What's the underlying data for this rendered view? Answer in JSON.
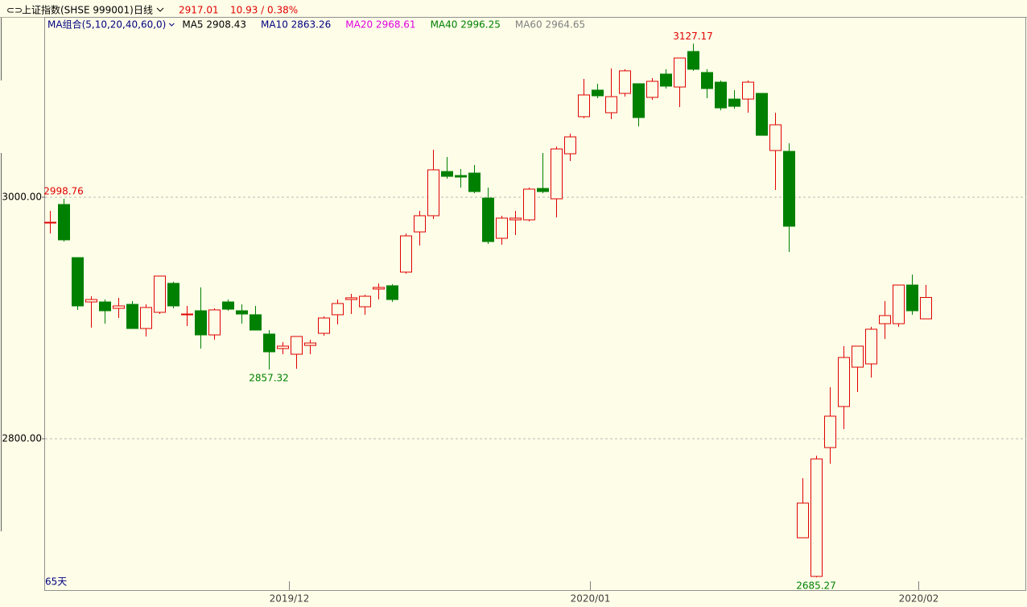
{
  "chart_data": {
    "type": "candlestick",
    "header": {
      "title": "上证指数(SHSE 999001)",
      "period": "日线",
      "last": "2917.01",
      "change": "10.93 / 0.38%"
    },
    "ma_legend": [
      {
        "text": "MA组合(5,10,20,40,60,0)",
        "color": "#000080"
      },
      {
        "text": "MA5 2908.43",
        "color": "#000000"
      },
      {
        "text": "MA10 2863.26",
        "color": "#000080"
      },
      {
        "text": "MA20 2968.61",
        "color": "#e000e0"
      },
      {
        "text": "MA40 2996.25",
        "color": "#008000"
      },
      {
        "text": "MA60 2964.65",
        "color": "#808080"
      }
    ],
    "period_count": "65天",
    "categories": [
      null,
      null,
      null,
      null,
      null,
      null,
      null,
      null,
      null,
      null,
      null,
      null,
      null,
      null,
      null,
      null,
      null,
      null,
      null,
      null,
      null,
      null,
      null,
      null,
      null,
      null,
      null,
      null,
      null,
      null,
      null,
      null,
      null,
      null,
      null,
      null,
      null,
      null,
      null,
      null,
      null,
      null,
      null,
      null,
      null,
      null,
      null,
      null,
      null,
      null,
      null,
      null,
      null,
      null,
      null,
      null,
      null,
      null,
      null,
      null,
      null,
      null,
      null,
      null,
      null
    ],
    "open": [
      2978.7,
      2994,
      2950,
      2913.3,
      2913.3,
      2908,
      2911.3,
      2891.3,
      2904.7,
      2928.7,
      2902.7,
      2906,
      2886,
      2913.3,
      2906,
      2902.7,
      2886.7,
      2874.7,
      2870,
      2877.3,
      2887.3,
      2902.7,
      2915.3,
      2909.3,
      2924,
      2926.7,
      2938,
      2971.3,
      2984.7,
      3021.3,
      3018,
      3020,
      2999.3,
      2966,
      2981.3,
      2981.3,
      3007.3,
      2998.7,
      3036,
      3066.7,
      3088.7,
      3070,
      3086,
      3094,
      3082.7,
      3102,
      3091.3,
      3120.7,
      3103.3,
      3095.3,
      3081.3,
      3081.3,
      3086,
      3038.7,
      3038,
      2718,
      2686,
      2792.7,
      2826.7,
      2859.3,
      2862,
      2895.3,
      2895.3,
      2927.3,
      2899.3
    ],
    "close": [
      2979.3,
      2964.7,
      2910,
      2915.3,
      2906,
      2910,
      2891.3,
      2908.7,
      2934.7,
      2910,
      2903.3,
      2886,
      2906.7,
      2907.3,
      2903.3,
      2890,
      2872,
      2876.7,
      2884.7,
      2879.3,
      2900,
      2912,
      2916.7,
      2918,
      2925.3,
      2915.3,
      2968,
      2984.7,
      3022.7,
      3017.3,
      3016.7,
      3004.7,
      2963.3,
      2982.7,
      2982.7,
      3006.7,
      3004.7,
      3040,
      3050,
      3084.7,
      3084,
      3083.3,
      3104.7,
      3066,
      3096,
      3092,
      3115.3,
      3106,
      3090,
      3074,
      3075.3,
      3095.3,
      3051.3,
      3060,
      2976,
      2746.7,
      2783.3,
      2818.7,
      2867.3,
      2876.7,
      2890.7,
      2902,
      2927.3,
      2906,
      2917.01
    ],
    "high": [
      2988.7,
      2998.76,
      2950,
      2918,
      2915.3,
      2916.7,
      2914,
      2911.3,
      2934.7,
      2930,
      2910,
      2925.3,
      2908,
      2915.3,
      2911.3,
      2910,
      2890,
      2880,
      2884.7,
      2882,
      2901.3,
      2915.3,
      2920,
      2919.3,
      2928.7,
      2928,
      2970,
      2988.7,
      3039.3,
      3033.3,
      3023.3,
      3026.7,
      3008,
      2984.7,
      2988.7,
      3008,
      3036.7,
      3042,
      3052.7,
      3098,
      3094,
      3106.7,
      3106,
      3094,
      3098.7,
      3106,
      3115.3,
      3127.17,
      3106,
      3096.7,
      3088.7,
      3096.7,
      3086,
      3070,
      3044.7,
      2767.3,
      2786,
      2842.7,
      2876.7,
      2876.7,
      2892.7,
      2914,
      2927.3,
      2936,
      2927.3
    ],
    "low": [
      2970,
      2963.3,
      2906.7,
      2892,
      2895.3,
      2900,
      2891.3,
      2884.7,
      2903.3,
      2908,
      2893.3,
      2874.7,
      2882,
      2906,
      2895.3,
      2890,
      2857.32,
      2870,
      2858,
      2870,
      2885.3,
      2894.7,
      2903.3,
      2902.7,
      2915.3,
      2913.3,
      2936.7,
      2960,
      2982,
      3015.3,
      3008,
      3003.3,
      2961.3,
      2960.7,
      2968.7,
      2980,
      3003.3,
      2983.3,
      3030,
      3065.3,
      3082,
      3064.7,
      3083.3,
      3058.7,
      3080.7,
      3090,
      3074.7,
      3104.7,
      3082,
      3072,
      3073.3,
      3070,
      3051.3,
      3006,
      2954.7,
      2718,
      2685.27,
      2779.3,
      2808,
      2838.7,
      2850.7,
      2882.7,
      2892.7,
      2902.7,
      2899.3
    ],
    "up_color": "#e00000",
    "down_color": "#008000",
    "annotations": [
      {
        "label": "2998.76",
        "value": 2998.76,
        "color": "#e00000"
      },
      {
        "label": "2857.32",
        "value": 2857.32,
        "color": "#008000"
      },
      {
        "label": "3127.17",
        "value": 3127.17,
        "color": "#e00000"
      },
      {
        "label": "2685.27",
        "value": 2685.27,
        "color": "#008000"
      }
    ],
    "ylim": [
      2676.67,
      3148.67
    ],
    "yticks": [
      {
        "value": 2800,
        "label": "2800.00"
      },
      {
        "value": 3000,
        "label": "3000.00"
      }
    ],
    "xticks": [
      {
        "value": 17.5,
        "label": "2019/12"
      },
      {
        "value": 39.5,
        "label": "2020/01"
      },
      {
        "value": 63.5,
        "label": "2020/02"
      }
    ],
    "grid": true
  }
}
